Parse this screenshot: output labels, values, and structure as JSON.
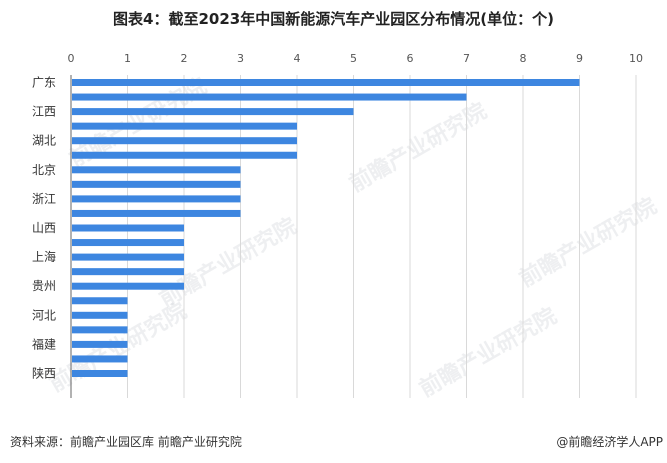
{
  "title": "图表4：截至2023年中国新能源汽车产业园区分布情况(单位：个)",
  "source": "资料来源：前瞻产业园区库 前瞻产业研究院",
  "brand": "@前瞻经济学人APP",
  "watermark": "前瞻产业研究院",
  "colors": {
    "bar": "#3d86e0",
    "grid": "#d9d9d9",
    "axis": "#666666"
  },
  "chart_data": {
    "type": "bar",
    "orientation": "horizontal",
    "xlim": [
      0,
      10
    ],
    "ticks": [
      0,
      1,
      2,
      3,
      4,
      5,
      6,
      7,
      8,
      9,
      10
    ],
    "grid": true,
    "categories": [
      "广东",
      "",
      "江西",
      "",
      "湖北",
      "",
      "北京",
      "",
      "浙江",
      "",
      "山西",
      "",
      "上海",
      "",
      "贵州",
      "",
      "河北",
      "",
      "福建",
      "",
      "陕西"
    ],
    "values": [
      9,
      7,
      5,
      4,
      4,
      4,
      3,
      3,
      3,
      3,
      2,
      2,
      2,
      2,
      2,
      1,
      1,
      1,
      1,
      1,
      1
    ]
  }
}
